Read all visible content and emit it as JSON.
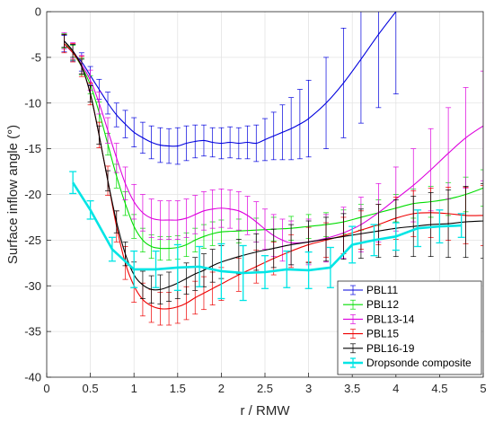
{
  "chart_data": {
    "type": "line",
    "title": "",
    "xlabel": "r / RMW",
    "ylabel": "Surface inflow angle (°)",
    "xlim": [
      0,
      5
    ],
    "ylim": [
      -40,
      0
    ],
    "xticks": [
      0,
      0.5,
      1,
      1.5,
      2,
      2.5,
      3,
      3.5,
      4,
      4.5,
      5
    ],
    "yticks": [
      0,
      -5,
      -10,
      -15,
      -20,
      -25,
      -30,
      -35,
      -40
    ],
    "grid": true,
    "legend_position": "bottom-right",
    "series": [
      {
        "name": "PBL11",
        "color": "#0000dd",
        "error_bars": true,
        "x": [
          0.2,
          0.3,
          0.4,
          0.5,
          0.6,
          0.7,
          0.8,
          0.9,
          1.0,
          1.1,
          1.2,
          1.3,
          1.4,
          1.5,
          1.6,
          1.7,
          1.8,
          1.9,
          2.0,
          2.1,
          2.2,
          2.3,
          2.4,
          2.5,
          2.6,
          2.7,
          2.8,
          2.9,
          3.0,
          3.2,
          3.4,
          3.6,
          3.8,
          4.0
        ],
        "y": [
          -3.5,
          -4.5,
          -5.5,
          -7.0,
          -8.5,
          -10.0,
          -11.3,
          -12.3,
          -13.2,
          -13.8,
          -14.3,
          -14.6,
          -14.7,
          -14.7,
          -14.4,
          -14.2,
          -14.1,
          -14.3,
          -14.4,
          -14.3,
          -14.4,
          -14.3,
          -14.4,
          -14.0,
          -13.6,
          -13.2,
          -12.8,
          -12.3,
          -11.7,
          -10.0,
          -7.8,
          -5.2,
          -2.5,
          0.0
        ],
        "err": [
          0.9,
          0.9,
          1.0,
          1.0,
          1.1,
          1.2,
          1.3,
          1.5,
          1.6,
          1.7,
          1.8,
          1.9,
          1.9,
          2.0,
          1.9,
          1.8,
          1.7,
          1.6,
          1.7,
          1.7,
          1.7,
          1.8,
          2.0,
          2.3,
          2.6,
          3.0,
          3.4,
          3.8,
          4.2,
          5.0,
          6.0,
          7.0,
          8.0,
          9.0
        ]
      },
      {
        "name": "PBL12",
        "color": "#00dd00",
        "error_bars": true,
        "x": [
          0.2,
          0.3,
          0.4,
          0.5,
          0.6,
          0.7,
          0.8,
          0.9,
          1.0,
          1.1,
          1.2,
          1.3,
          1.4,
          1.5,
          1.6,
          1.7,
          1.8,
          1.9,
          2.0,
          2.2,
          2.4,
          2.6,
          2.8,
          3.0,
          3.2,
          3.4,
          3.6,
          3.8,
          4.0,
          4.2,
          4.4,
          4.6,
          4.8,
          5.0
        ],
        "y": [
          -3.2,
          -4.5,
          -6.0,
          -8.0,
          -11.0,
          -14.5,
          -18.0,
          -21.0,
          -23.5,
          -25.0,
          -25.7,
          -25.9,
          -25.9,
          -25.8,
          -25.5,
          -25.0,
          -24.6,
          -24.3,
          -24.1,
          -24.0,
          -23.9,
          -23.8,
          -23.7,
          -23.5,
          -23.3,
          -23.0,
          -22.5,
          -22.0,
          -21.5,
          -21.0,
          -20.8,
          -20.5,
          -20.0,
          -19.3
        ],
        "err": [
          0.8,
          0.8,
          0.9,
          1.0,
          1.1,
          1.2,
          1.3,
          1.3,
          1.3,
          1.3,
          1.3,
          1.3,
          1.3,
          1.3,
          1.3,
          1.3,
          1.3,
          1.3,
          1.3,
          1.3,
          1.3,
          1.3,
          1.3,
          1.3,
          1.3,
          1.3,
          1.4,
          1.4,
          1.5,
          1.6,
          1.7,
          1.8,
          1.9,
          2.0
        ]
      },
      {
        "name": "PBL13-14",
        "color": "#dd00dd",
        "error_bars": true,
        "x": [
          0.2,
          0.3,
          0.4,
          0.5,
          0.6,
          0.7,
          0.8,
          0.9,
          1.0,
          1.1,
          1.2,
          1.3,
          1.4,
          1.5,
          1.6,
          1.7,
          1.8,
          1.9,
          2.0,
          2.1,
          2.2,
          2.3,
          2.4,
          2.5,
          2.6,
          2.7,
          2.8,
          3.0,
          3.2,
          3.4,
          3.6,
          3.8,
          4.0,
          4.2,
          4.4,
          4.6,
          4.8,
          5.0
        ],
        "y": [
          -3.2,
          -4.3,
          -5.8,
          -7.5,
          -10.0,
          -13.0,
          -16.0,
          -18.8,
          -20.8,
          -22.0,
          -22.6,
          -22.8,
          -22.8,
          -22.8,
          -22.6,
          -22.2,
          -21.8,
          -21.6,
          -21.5,
          -21.6,
          -21.8,
          -22.3,
          -23.0,
          -23.8,
          -24.5,
          -25.0,
          -25.3,
          -25.2,
          -24.8,
          -24.2,
          -23.3,
          -22.0,
          -20.5,
          -19.0,
          -17.3,
          -15.5,
          -13.8,
          -12.5
        ],
        "err": [
          0.9,
          0.9,
          1.0,
          1.1,
          1.2,
          1.4,
          1.6,
          1.8,
          1.9,
          2.0,
          2.1,
          2.1,
          2.1,
          2.1,
          2.1,
          2.1,
          2.1,
          2.1,
          2.1,
          2.1,
          2.1,
          2.1,
          2.2,
          2.2,
          2.3,
          2.3,
          2.4,
          2.5,
          2.6,
          2.8,
          3.0,
          3.2,
          3.5,
          4.0,
          4.5,
          5.0,
          5.5,
          6.0
        ]
      },
      {
        "name": "PBL15",
        "color": "#ee0000",
        "error_bars": true,
        "x": [
          0.2,
          0.3,
          0.4,
          0.5,
          0.6,
          0.7,
          0.8,
          0.9,
          1.0,
          1.1,
          1.2,
          1.3,
          1.4,
          1.5,
          1.6,
          1.7,
          1.8,
          1.9,
          2.0,
          2.2,
          2.4,
          2.6,
          2.8,
          3.0,
          3.2,
          3.4,
          3.6,
          3.8,
          4.0,
          4.2,
          4.4,
          4.6,
          4.8,
          5.0
        ],
        "y": [
          -3.5,
          -4.5,
          -6.0,
          -9.0,
          -13.5,
          -18.5,
          -23.5,
          -27.5,
          -30.0,
          -31.5,
          -32.2,
          -32.5,
          -32.5,
          -32.3,
          -31.9,
          -31.3,
          -30.8,
          -30.3,
          -29.8,
          -28.8,
          -27.9,
          -27.0,
          -26.2,
          -25.5,
          -25.0,
          -24.5,
          -23.9,
          -23.3,
          -22.6,
          -22.1,
          -22.0,
          -22.1,
          -22.3,
          -22.3
        ],
        "err": [
          1.0,
          1.0,
          1.1,
          1.2,
          1.4,
          1.6,
          1.7,
          1.8,
          1.8,
          1.8,
          1.8,
          1.8,
          1.8,
          1.8,
          1.8,
          1.8,
          1.8,
          1.8,
          1.8,
          1.8,
          1.8,
          1.8,
          1.8,
          1.9,
          1.9,
          2.0,
          2.1,
          2.2,
          2.3,
          2.5,
          2.7,
          2.9,
          3.1,
          3.3
        ]
      },
      {
        "name": "PBL16-19",
        "color": "#000000",
        "error_bars": true,
        "x": [
          0.2,
          0.3,
          0.4,
          0.5,
          0.6,
          0.7,
          0.8,
          0.9,
          1.0,
          1.1,
          1.2,
          1.3,
          1.4,
          1.5,
          1.6,
          1.7,
          1.8,
          1.9,
          2.0,
          2.2,
          2.4,
          2.6,
          2.8,
          3.0,
          3.2,
          3.4,
          3.6,
          3.8,
          4.0,
          4.2,
          4.4,
          4.6,
          4.8,
          5.0
        ],
        "y": [
          -3.2,
          -4.3,
          -6.0,
          -9.0,
          -13.5,
          -18.5,
          -23.0,
          -26.5,
          -28.8,
          -29.9,
          -30.4,
          -30.4,
          -30.1,
          -29.7,
          -29.2,
          -28.7,
          -28.3,
          -27.8,
          -27.4,
          -26.8,
          -26.3,
          -25.9,
          -25.5,
          -25.2,
          -24.9,
          -24.6,
          -24.3,
          -24.0,
          -23.7,
          -23.5,
          -23.3,
          -23.2,
          -23.0,
          -22.9
        ],
        "err": [
          0.7,
          0.7,
          0.8,
          0.9,
          1.0,
          1.1,
          1.2,
          1.3,
          1.4,
          1.5,
          1.5,
          1.6,
          1.6,
          1.7,
          1.7,
          1.8,
          1.8,
          1.8,
          1.8,
          1.9,
          2.0,
          2.1,
          2.2,
          2.3,
          2.4,
          2.5,
          2.7,
          2.9,
          3.1,
          3.3,
          3.5,
          3.7,
          3.9,
          4.1
        ]
      },
      {
        "name": "Dropsonde composite",
        "color": "#00e5e5",
        "error_bars": true,
        "thick": true,
        "x": [
          0.3,
          0.5,
          0.75,
          1.0,
          1.25,
          1.5,
          1.75,
          2.0,
          2.25,
          2.5,
          2.75,
          3.0,
          3.25,
          3.5,
          3.75,
          4.0,
          4.25,
          4.5,
          4.75
        ],
        "y": [
          -18.7,
          -21.7,
          -26.0,
          -28.2,
          -28.2,
          -28.0,
          -27.9,
          -28.4,
          -28.6,
          -28.5,
          -28.2,
          -28.3,
          -28.0,
          -25.5,
          -25.0,
          -24.6,
          -23.7,
          -23.5,
          -23.4
        ],
        "err": [
          1.2,
          1.0,
          1.3,
          2.0,
          2.0,
          2.5,
          2.2,
          3.0,
          3.0,
          1.8,
          2.0,
          2.0,
          2.2,
          2.0,
          1.7,
          1.5,
          2.0,
          1.8,
          1.3
        ]
      }
    ]
  }
}
